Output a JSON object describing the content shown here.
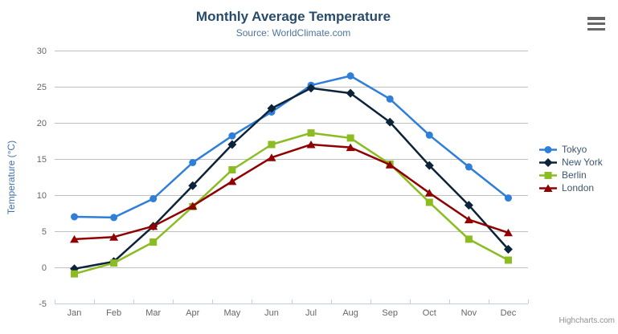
{
  "credit": "Highcharts.com",
  "icons": {
    "context_menu": "hamburger-menu-icon"
  },
  "colors": {
    "title": "#274b6d",
    "subtitle": "#4d759e",
    "axis_labels": "#666666",
    "y_axis_title": "#4572a7",
    "gridline": "#c0c0c0",
    "axis_line": "#c0d0e0",
    "legend_text": "#3e576f",
    "credit": "#909090",
    "menu_icon": "#666666"
  },
  "chart_data": {
    "type": "line",
    "title": "Monthly Average Temperature",
    "subtitle": "Source: WorldClimate.com",
    "xlabel": "",
    "ylabel": "Temperature (°C)",
    "ylim": [
      -5,
      30
    ],
    "yticks": [
      -5,
      0,
      5,
      10,
      15,
      20,
      25,
      30
    ],
    "grid": true,
    "legend_position": "right-middle",
    "categories": [
      "Jan",
      "Feb",
      "Mar",
      "Apr",
      "May",
      "Jun",
      "Jul",
      "Aug",
      "Sep",
      "Oct",
      "Nov",
      "Dec"
    ],
    "series": [
      {
        "name": "Tokyo",
        "color": "#2f7ed8",
        "marker": "circle",
        "values": [
          7.0,
          6.9,
          9.5,
          14.5,
          18.2,
          21.5,
          25.2,
          26.5,
          23.3,
          18.3,
          13.9,
          9.6
        ]
      },
      {
        "name": "New York",
        "color": "#0d233a",
        "marker": "diamond",
        "values": [
          -0.2,
          0.8,
          5.7,
          11.3,
          17.0,
          22.0,
          24.8,
          24.1,
          20.1,
          14.1,
          8.6,
          2.5
        ]
      },
      {
        "name": "Berlin",
        "color": "#8bbc21",
        "marker": "square",
        "values": [
          -0.9,
          0.6,
          3.5,
          8.4,
          13.5,
          17.0,
          18.6,
          17.9,
          14.3,
          9.0,
          3.9,
          1.0
        ]
      },
      {
        "name": "London",
        "color": "#910000",
        "marker": "triangle",
        "values": [
          3.9,
          4.2,
          5.7,
          8.5,
          11.9,
          15.2,
          17.0,
          16.6,
          14.2,
          10.3,
          6.6,
          4.8
        ]
      }
    ]
  }
}
